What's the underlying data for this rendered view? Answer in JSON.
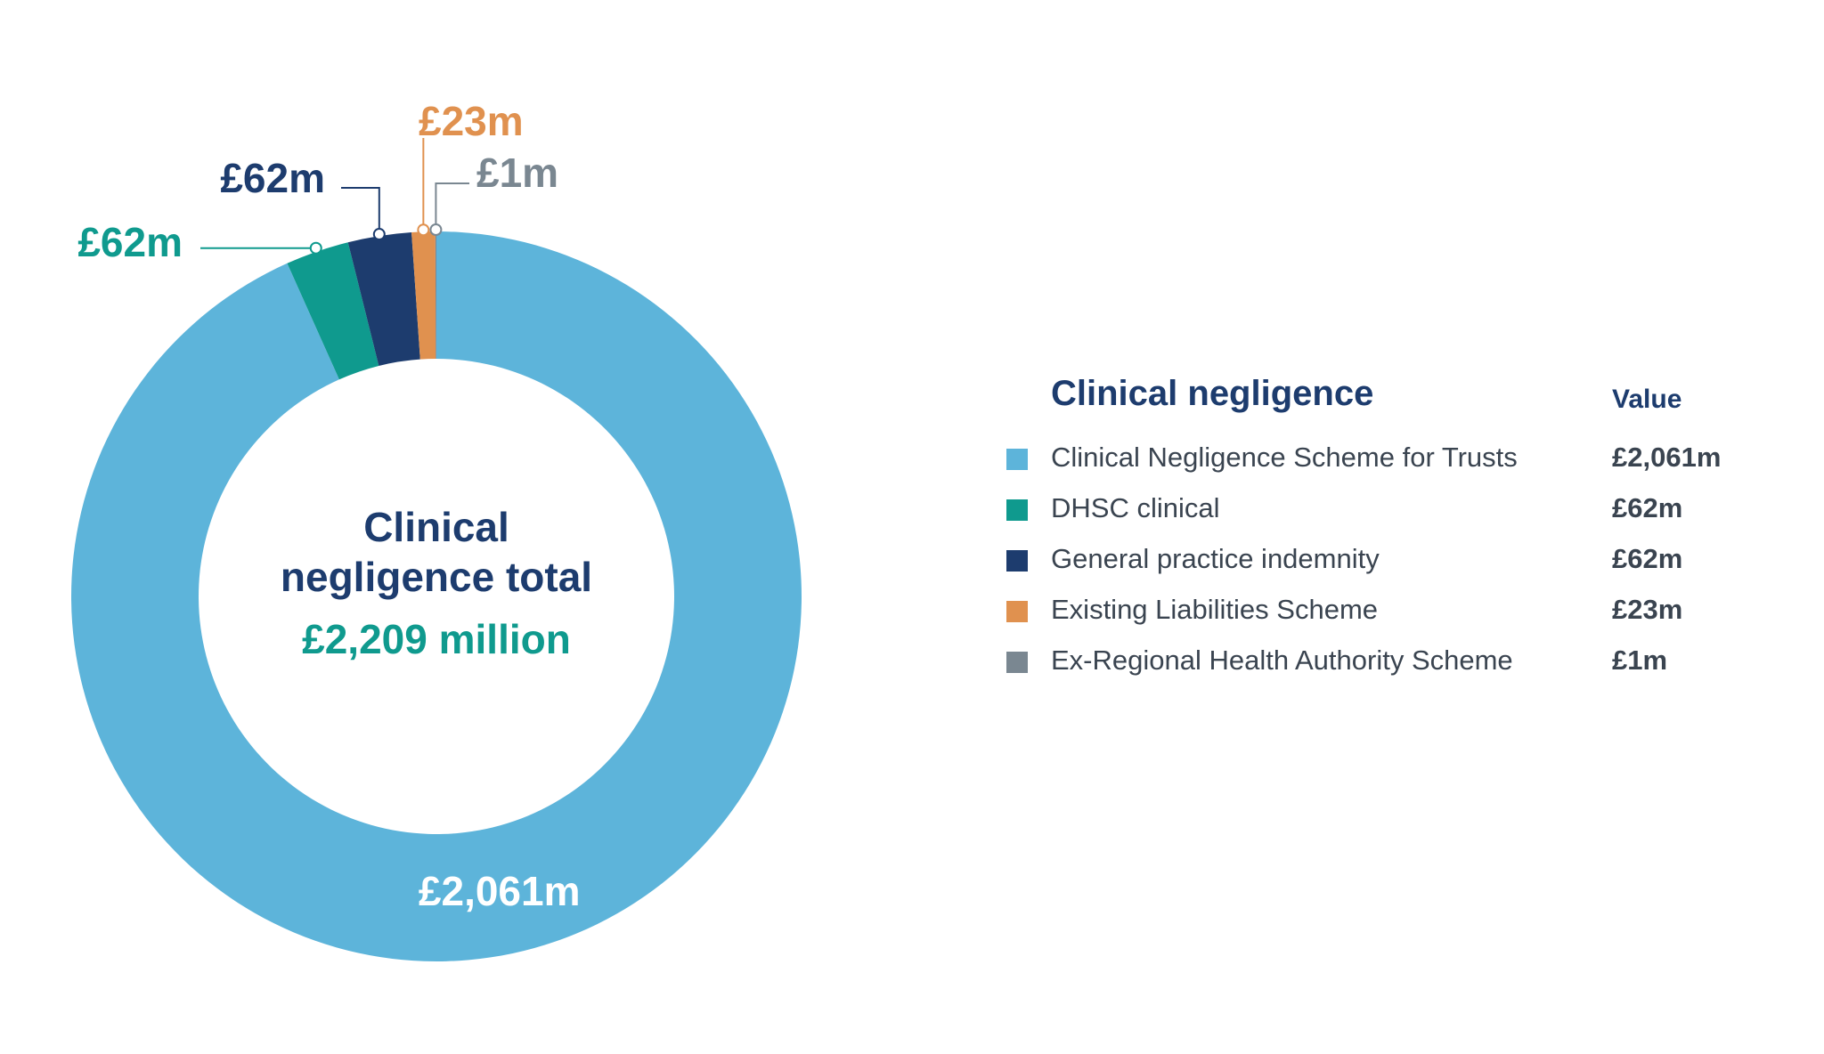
{
  "chart_data": {
    "type": "pie",
    "variant": "donut",
    "categories": [
      "Clinical Negligence Scheme for Trusts",
      "DHSC clinical",
      "General practice indemnity",
      "Existing Liabilities Scheme",
      "Ex-Regional Health Authority Scheme"
    ],
    "values": [
      2061,
      62,
      62,
      23,
      1
    ],
    "value_labels": [
      "£2,061m",
      "£62m",
      "£62m",
      "£23m",
      "£1m"
    ],
    "colors": [
      "#5db4da",
      "#0f9a8e",
      "#1d3c6e",
      "#e0914f",
      "#7a8791"
    ],
    "center_text": {
      "line1": "Clinical",
      "line2": "negligence total",
      "total": "£2,209 million"
    },
    "legend": {
      "title": "Clinical negligence",
      "value_header": "Value",
      "placement": "right"
    }
  }
}
